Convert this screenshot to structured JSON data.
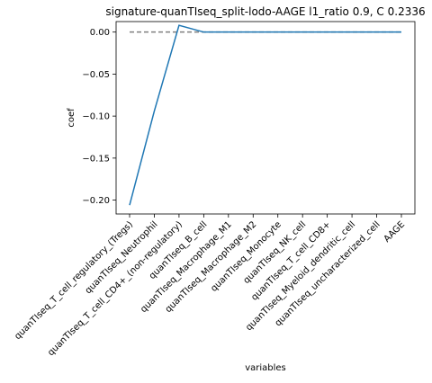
{
  "chart_data": {
    "type": "line",
    "title": "signature-quanTIseq_split-lodo-AAGE l1_ratio 0.9, C 0.2336",
    "xlabel": "variables",
    "ylabel": "coef",
    "categories": [
      "quanTIseq_T_cell_regulatory_(Tregs)",
      "quanTIseq_Neutrophil",
      "quanTIseq_T_cell_CD4+_(non-regulatory)",
      "quanTIseq_B_cell",
      "quanTIseq_Macrophage_M1",
      "quanTIseq_Macrophage_M2",
      "quanTIseq_Monocyte",
      "quanTIseq_NK_cell",
      "quanTIseq_T_cell_CD8+",
      "quanTIseq_Myeloid_dendritic_cell",
      "quanTIseq_uncharacterized_cell",
      "AAGE"
    ],
    "series": [
      {
        "values": [
          -0.206,
          -0.094,
          0.008,
          0.0,
          0.0,
          0.0,
          0.0,
          0.0,
          0.0,
          0.0,
          0.0,
          0.0
        ],
        "color": "#1f77b4"
      }
    ],
    "reference_line": {
      "value": 0.0,
      "style": "dashed",
      "color": "#808080"
    },
    "ylim": [
      -0.2165,
      0.0125
    ],
    "yticks": [
      0.0,
      -0.05,
      -0.1,
      -0.15,
      -0.2
    ],
    "ytick_labels": [
      "0.00",
      "−0.05",
      "−0.10",
      "−0.15",
      "−0.20"
    ],
    "grid": false,
    "legend": "none"
  }
}
